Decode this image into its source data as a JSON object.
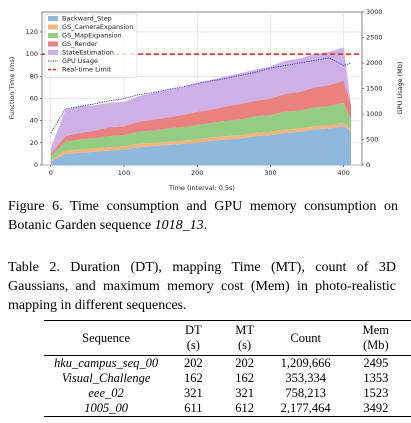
{
  "chart_data": {
    "type": "stacked_area",
    "x_label": "Time (Interval: 0.5s)",
    "y_label": "Function Time (ms)",
    "y2_label": "GPU Usage (Mb)",
    "x": [
      0,
      20,
      40,
      60,
      80,
      100,
      120,
      140,
      160,
      180,
      200,
      220,
      240,
      260,
      280,
      300,
      320,
      340,
      360,
      380,
      400,
      410
    ],
    "xlim": [
      -12,
      425
    ],
    "xticks": [
      0,
      100,
      200,
      300,
      400
    ],
    "ylim": [
      0,
      138
    ],
    "yticks": [
      0,
      20,
      40,
      60,
      80,
      100,
      120
    ],
    "y2lim": [
      0,
      3000
    ],
    "y2ticks": [
      0,
      500,
      1000,
      1500,
      2000,
      2500,
      3000
    ],
    "grid": true,
    "legend": "upper left",
    "series": [
      {
        "name": "Backward_Step",
        "color": "#8fb9dc",
        "values": [
          3,
          10,
          11,
          12,
          13,
          14,
          16,
          17,
          18,
          19,
          20,
          22,
          23,
          24,
          26,
          27,
          29,
          30,
          32,
          33,
          35,
          30
        ]
      },
      {
        "name": "GS_CameraExpansion",
        "color": "#f7b47c",
        "values": [
          1,
          3,
          3,
          3,
          3,
          3,
          3,
          3,
          3,
          3,
          3,
          3,
          3,
          3,
          3,
          3,
          3,
          3,
          3,
          3,
          3,
          2
        ]
      },
      {
        "name": "GS_MapExpansion",
        "color": "#93cc83",
        "values": [
          4,
          8,
          9,
          9,
          10,
          10,
          11,
          11,
          12,
          12,
          13,
          13,
          14,
          14,
          15,
          15,
          16,
          16,
          17,
          17,
          18,
          8
        ]
      },
      {
        "name": "GS_Render",
        "color": "#e9827f",
        "values": [
          2,
          5,
          6,
          7,
          8,
          8,
          9,
          10,
          10,
          11,
          12,
          12,
          13,
          14,
          14,
          15,
          16,
          17,
          18,
          19,
          20,
          14
        ]
      },
      {
        "name": "StateEstimation",
        "color": "#cfb0e6",
        "values": [
          5,
          24,
          24,
          23,
          22,
          22,
          23,
          24,
          25,
          25,
          26,
          27,
          27,
          28,
          28,
          29,
          30,
          30,
          30,
          30,
          30,
          0
        ]
      },
      {
        "name": "GPU Usage",
        "color": "#2233cc",
        "axis": "y2",
        "style": "dotted",
        "values": [
          630,
          1100,
          1150,
          1200,
          1260,
          1300,
          1380,
          1420,
          1480,
          1530,
          1600,
          1650,
          1700,
          1760,
          1820,
          1900,
          1950,
          2000,
          2050,
          2100,
          1950,
          2000
        ]
      }
    ],
    "realtime_limit": {
      "name": "Real-time Limit",
      "color": "#d62728",
      "value": 100
    }
  },
  "figure_caption": {
    "text": "Figure 6. Time consumption and GPU memory consumption on Botanic Garden sequence",
    "sequence": "1018_13",
    "end": "."
  },
  "table": {
    "caption": "Table 2. Duration (DT), mapping Time (MT), count of 3D Gaussians, and maximum memory cost (Mem) in photo-realistic mapping in different sequences.",
    "header": [
      "Sequence",
      "DT (s)",
      "MT (s)",
      "Count",
      "Mem (Mb)"
    ],
    "rows": [
      [
        "hku_campus_seq_00",
        "202",
        "202",
        "1,209,666",
        "2495"
      ],
      [
        "Visual_Challenge",
        "162",
        "162",
        "353,334",
        "1353"
      ],
      [
        "eee_02",
        "321",
        "321",
        "758,213",
        "1523"
      ],
      [
        "1005_00",
        "611",
        "612",
        "2,177,464",
        "3492"
      ]
    ]
  }
}
